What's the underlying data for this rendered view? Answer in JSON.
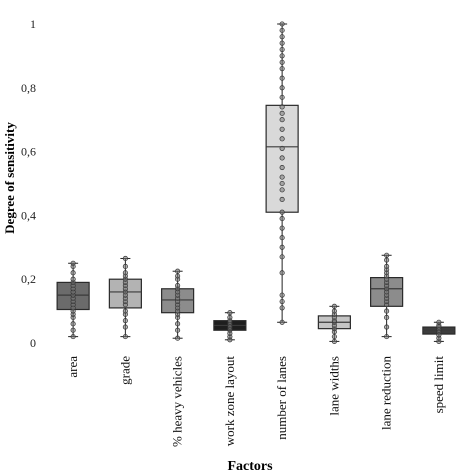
{
  "chart_data": {
    "type": "box",
    "title": "",
    "xlabel": "Factors",
    "ylabel": "Degree of sensitivity",
    "ylim": [
      0,
      1
    ],
    "yticks": [
      {
        "value": 0,
        "label": "0"
      },
      {
        "value": 0.2,
        "label": "0,2"
      },
      {
        "value": 0.4,
        "label": "0,4"
      },
      {
        "value": 0.6,
        "label": "0,6"
      },
      {
        "value": 0.8,
        "label": "0,8"
      },
      {
        "value": 1,
        "label": "1"
      }
    ],
    "grid": false,
    "boxes": [
      {
        "category": "area",
        "fill": "#6b6b6b",
        "min": 0.02,
        "q1": 0.105,
        "median": 0.15,
        "q3": 0.19,
        "max": 0.25,
        "points": [
          0.02,
          0.04,
          0.06,
          0.08,
          0.09,
          0.1,
          0.11,
          0.12,
          0.13,
          0.14,
          0.15,
          0.16,
          0.17,
          0.18,
          0.19,
          0.2,
          0.22,
          0.24,
          0.25
        ]
      },
      {
        "category": "grade",
        "fill": "#b3b3b3",
        "min": 0.02,
        "q1": 0.11,
        "median": 0.16,
        "q3": 0.2,
        "max": 0.265,
        "points": [
          0.02,
          0.05,
          0.07,
          0.09,
          0.1,
          0.12,
          0.13,
          0.14,
          0.15,
          0.16,
          0.17,
          0.18,
          0.19,
          0.2,
          0.21,
          0.22,
          0.24,
          0.265
        ]
      },
      {
        "category": "% heavy vehicles",
        "fill": "#8c8c8c",
        "min": 0.015,
        "q1": 0.095,
        "median": 0.135,
        "q3": 0.17,
        "max": 0.225,
        "points": [
          0.015,
          0.04,
          0.06,
          0.08,
          0.09,
          0.1,
          0.11,
          0.12,
          0.13,
          0.14,
          0.15,
          0.16,
          0.17,
          0.18,
          0.2,
          0.21,
          0.225
        ]
      },
      {
        "category": "work zone layout",
        "fill": "#1e1e1e",
        "min": 0.01,
        "q1": 0.04,
        "median": 0.055,
        "q3": 0.07,
        "max": 0.095,
        "points": [
          0.01,
          0.02,
          0.03,
          0.04,
          0.045,
          0.05,
          0.055,
          0.06,
          0.065,
          0.07,
          0.08,
          0.095
        ]
      },
      {
        "category": "number of lanes",
        "fill": "#d9d9d9",
        "min": 0.065,
        "q1": 0.41,
        "median": 0.615,
        "q3": 0.745,
        "max": 1.0,
        "points": [
          0.065,
          0.11,
          0.13,
          0.15,
          0.22,
          0.27,
          0.3,
          0.33,
          0.36,
          0.39,
          0.41,
          0.45,
          0.48,
          0.5,
          0.52,
          0.55,
          0.58,
          0.61,
          0.64,
          0.67,
          0.7,
          0.72,
          0.74,
          0.77,
          0.8,
          0.83,
          0.86,
          0.88,
          0.9,
          0.92,
          0.94,
          0.96,
          0.98,
          1.0
        ]
      },
      {
        "category": "lane widths",
        "fill": "#c4c4c4",
        "min": 0.005,
        "q1": 0.045,
        "median": 0.065,
        "q3": 0.085,
        "max": 0.115,
        "points": [
          0.005,
          0.02,
          0.035,
          0.045,
          0.055,
          0.065,
          0.07,
          0.08,
          0.09,
          0.1,
          0.115
        ]
      },
      {
        "category": "lane reduction",
        "fill": "#8c8c8c",
        "min": 0.02,
        "q1": 0.115,
        "median": 0.17,
        "q3": 0.205,
        "max": 0.275,
        "points": [
          0.02,
          0.05,
          0.08,
          0.1,
          0.12,
          0.13,
          0.14,
          0.15,
          0.16,
          0.17,
          0.18,
          0.19,
          0.2,
          0.21,
          0.22,
          0.23,
          0.24,
          0.26,
          0.275
        ]
      },
      {
        "category": "speed limit",
        "fill": "#3c3c3c",
        "min": 0.005,
        "q1": 0.028,
        "median": 0.04,
        "q3": 0.05,
        "max": 0.065,
        "points": [
          0.005,
          0.015,
          0.025,
          0.035,
          0.04,
          0.045,
          0.05,
          0.055,
          0.065
        ]
      }
    ]
  }
}
